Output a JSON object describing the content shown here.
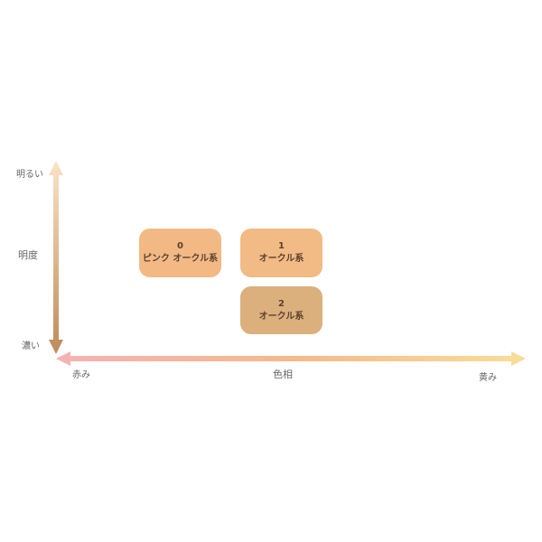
{
  "axes": {
    "vertical": {
      "title": "明度",
      "top_label": "明るい",
      "bottom_label": "濃い",
      "color_top": "#fbe3c6",
      "color_bottom": "#bf8a5a"
    },
    "horizontal": {
      "title": "色相",
      "left_label": "赤み",
      "right_label": "黄み",
      "color_left": "#f4b3b3",
      "color_mid": "#f5b98a",
      "color_right": "#f9dd9a"
    }
  },
  "shades": [
    {
      "number": "0",
      "name": "ピンク オークル系",
      "color": "#f2b985"
    },
    {
      "number": "1",
      "name": "オークル系",
      "color": "#f2ba84"
    },
    {
      "number": "2",
      "name": "オークル系",
      "color": "#dcb07c"
    }
  ]
}
